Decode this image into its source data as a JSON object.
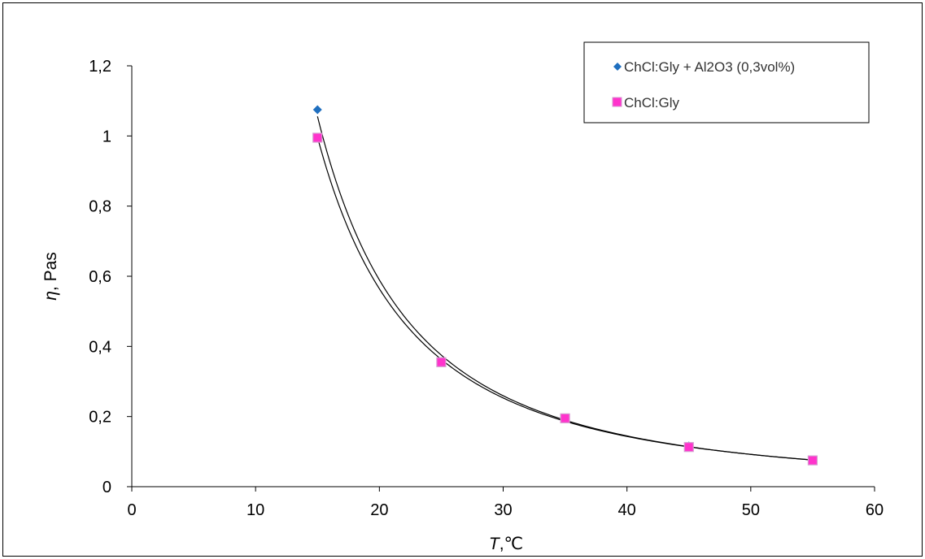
{
  "chart_data": {
    "type": "scatter",
    "title": "",
    "xlabel": "T,℃",
    "xlabel_italic": "T",
    "xlabel_rest": ",℃",
    "ylabel": "η, Pas",
    "ylabel_italic": "η",
    "ylabel_rest": ", Pas",
    "xlim": [
      0,
      60
    ],
    "ylim": [
      0,
      1.2
    ],
    "x_ticks": [
      "0",
      "10",
      "20",
      "30",
      "40",
      "50",
      "60"
    ],
    "y_ticks": [
      "0",
      "0,2",
      "0,4",
      "0,6",
      "0,8",
      "1",
      "1,2"
    ],
    "grid": false,
    "legend_position": "top-right",
    "trendline": "power",
    "series": [
      {
        "name": "ChCl:Gly + Al2O3 (0,3vol%)",
        "marker": "diamond",
        "color": "#1f6fbf",
        "x": [
          15,
          25,
          35,
          45,
          55
        ],
        "y": [
          1.075,
          0.357,
          0.195,
          0.116,
          0.075
        ]
      },
      {
        "name": "ChCl:Gly",
        "marker": "square",
        "color": "#ff33cc",
        "border": "#d59ad0",
        "x": [
          15,
          25,
          35,
          45,
          55
        ],
        "y": [
          0.995,
          0.355,
          0.195,
          0.113,
          0.075
        ]
      }
    ]
  }
}
